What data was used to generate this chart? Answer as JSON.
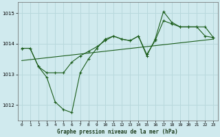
{
  "title": "Graphe pression niveau de la mer (hPa)",
  "bg_color": "#d0eaee",
  "grid_color": "#b8d8dc",
  "line_color": "#1a5c1a",
  "xmin": -0.5,
  "xmax": 23.5,
  "ymin": 1011.5,
  "ymax": 1015.35,
  "yticks": [
    1012,
    1013,
    1014,
    1015
  ],
  "xticks": [
    0,
    1,
    2,
    3,
    4,
    5,
    6,
    7,
    8,
    9,
    10,
    11,
    12,
    13,
    14,
    15,
    16,
    17,
    18,
    19,
    20,
    21,
    22,
    23
  ],
  "series_main": {
    "x": [
      0,
      1,
      2,
      3,
      4,
      5,
      6,
      7,
      8,
      9,
      10,
      11,
      12,
      13,
      14,
      15,
      16,
      17,
      18,
      19,
      20,
      21,
      22,
      23
    ],
    "y": [
      1013.85,
      1013.85,
      1013.25,
      1012.9,
      1012.1,
      1011.85,
      1011.75,
      1013.05,
      1013.5,
      1013.85,
      1014.15,
      1014.25,
      1014.15,
      1014.1,
      1014.25,
      1013.6,
      1014.15,
      1015.05,
      1014.7,
      1014.55,
      1014.55,
      1014.55,
      1014.25,
      1014.2
    ]
  },
  "series_smooth": {
    "x": [
      0,
      1,
      2,
      3,
      4,
      5,
      6,
      7,
      8,
      9,
      10,
      11,
      12,
      13,
      14,
      15,
      16,
      17,
      18,
      19,
      20,
      21,
      22,
      23
    ],
    "y": [
      1013.85,
      1013.85,
      1013.25,
      1013.05,
      1013.05,
      1013.05,
      1013.4,
      1013.6,
      1013.75,
      1013.9,
      1014.1,
      1014.25,
      1014.15,
      1014.1,
      1014.25,
      1013.65,
      1014.1,
      1014.75,
      1014.65,
      1014.55,
      1014.55,
      1014.55,
      1014.55,
      1014.2
    ]
  },
  "series_trend": {
    "x": [
      0,
      23
    ],
    "y": [
      1013.45,
      1014.15
    ]
  }
}
